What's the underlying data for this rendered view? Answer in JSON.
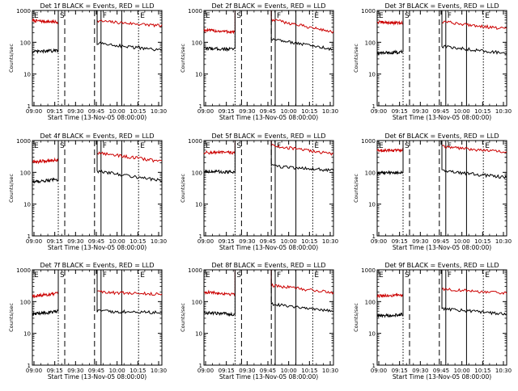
{
  "chart_data": [
    {
      "type": "line",
      "title": "Det 1f BLACK = Events, RED = LLD",
      "xlabel": "Start Time (13-Nov-05 08:00:00)",
      "ylabel": "Counts/sec",
      "x_ticks": [
        "09:00",
        "09:15",
        "09:30",
        "09:45",
        "10:00",
        "10:15",
        "10:30"
      ],
      "y_ticks": [
        "1",
        "10",
        "100",
        "1000"
      ],
      "ylim": [
        1,
        1000
      ],
      "y_scale": "log",
      "markers": [
        {
          "label": "E",
          "style": "solid",
          "t": 0
        },
        {
          "label": "S",
          "style": "dotted",
          "t": 0.2
        },
        {
          "label": "",
          "style": "dashed",
          "t": 0.25
        },
        {
          "label": "",
          "style": "dashed",
          "t": 0.48
        },
        {
          "label": "F",
          "style": "solid",
          "t": 0.53
        },
        {
          "label": "",
          "style": "solid",
          "t": 0.69
        },
        {
          "label": "E",
          "style": "dotted",
          "t": 0.82
        }
      ],
      "series": [
        {
          "color": "#cc0000",
          "segments": [
            {
              "x0": 0,
              "x1": 0.2,
              "v0": 480,
              "v1": 430,
              "spike": 1000
            },
            {
              "x0": 0.5,
              "x1": 1.0,
              "v0": 470,
              "v1": 330,
              "spike": 1000
            }
          ]
        },
        {
          "color": "#000000",
          "segments": [
            {
              "x0": 0,
              "x1": 0.2,
              "v0": 50,
              "v1": 55,
              "spike": 120
            },
            {
              "x0": 0.5,
              "x1": 1.0,
              "v0": 95,
              "v1": 55,
              "spike": 120
            }
          ]
        }
      ]
    },
    {
      "type": "line",
      "title": "Det 2f BLACK = Events, RED = LLD",
      "xlabel": "Start Time (13-Nov-05 08:00:00)",
      "ylabel": "Counts/sec",
      "x_ticks": [
        "09:00",
        "09:15",
        "09:30",
        "09:45",
        "10:00",
        "10:15",
        "10:30"
      ],
      "y_ticks": [
        "1",
        "10",
        "100",
        "1000"
      ],
      "ylim": [
        1,
        1000
      ],
      "y_scale": "log",
      "markers": [
        {
          "label": "E",
          "style": "solid",
          "t": 0
        },
        {
          "label": "S",
          "style": "dotted",
          "t": 0.24
        },
        {
          "label": "",
          "style": "dashed",
          "t": 0.29
        },
        {
          "label": "",
          "style": "dashed",
          "t": 0.52
        },
        {
          "label": "F",
          "style": "solid",
          "t": 0.55
        },
        {
          "label": "",
          "style": "solid",
          "t": 0.71
        },
        {
          "label": "E",
          "style": "dotted",
          "t": 0.84
        }
      ],
      "series": [
        {
          "color": "#cc0000",
          "segments": [
            {
              "x0": 0,
              "x1": 0.24,
              "v0": 240,
              "v1": 210,
              "spike": 1000
            },
            {
              "x0": 0.52,
              "x1": 1.0,
              "v0": 520,
              "v1": 210,
              "spike": 1000
            }
          ]
        },
        {
          "color": "#000000",
          "segments": [
            {
              "x0": 0,
              "x1": 0.24,
              "v0": 65,
              "v1": 60,
              "spike": 140
            },
            {
              "x0": 0.52,
              "x1": 1.0,
              "v0": 130,
              "v1": 60,
              "spike": 140
            }
          ]
        }
      ]
    },
    {
      "type": "line",
      "title": "Det 3f BLACK = Events, RED = LLD",
      "xlabel": "Start Time (13-Nov-05 08:00:00)",
      "ylabel": "Counts/sec",
      "x_ticks": [
        "09:00",
        "09:15",
        "09:30",
        "09:45",
        "10:00",
        "10:15",
        "10:30"
      ],
      "y_ticks": [
        "1",
        "10",
        "100",
        "1000"
      ],
      "ylim": [
        1,
        1000
      ],
      "y_scale": "log",
      "markers": [
        {
          "label": "E",
          "style": "solid",
          "t": 0
        },
        {
          "label": "S",
          "style": "dotted",
          "t": 0.2
        },
        {
          "label": "",
          "style": "dashed",
          "t": 0.25
        },
        {
          "label": "",
          "style": "dashed",
          "t": 0.48
        },
        {
          "label": "F",
          "style": "solid",
          "t": 0.53
        },
        {
          "label": "",
          "style": "solid",
          "t": 0.69
        },
        {
          "label": "E",
          "style": "dotted",
          "t": 0.82
        }
      ],
      "series": [
        {
          "color": "#cc0000",
          "segments": [
            {
              "x0": 0,
              "x1": 0.2,
              "v0": 430,
              "v1": 400,
              "spike": 1000
            },
            {
              "x0": 0.5,
              "x1": 1.0,
              "v0": 450,
              "v1": 260,
              "spike": 1000
            }
          ]
        },
        {
          "color": "#000000",
          "segments": [
            {
              "x0": 0,
              "x1": 0.2,
              "v0": 45,
              "v1": 50,
              "spike": 110
            },
            {
              "x0": 0.5,
              "x1": 1.0,
              "v0": 75,
              "v1": 45,
              "spike": 110
            }
          ]
        }
      ]
    },
    {
      "type": "line",
      "title": "Det 4f BLACK = Events, RED = LLD",
      "xlabel": "Start Time (13-Nov-05 08:00:00)",
      "ylabel": "Counts/sec",
      "x_ticks": [
        "09:00",
        "09:15",
        "09:30",
        "09:45",
        "10:00",
        "10:15",
        "10:30"
      ],
      "y_ticks": [
        "1",
        "10",
        "100",
        "1000"
      ],
      "ylim": [
        1,
        1000
      ],
      "y_scale": "log",
      "markers": [
        {
          "label": "E",
          "style": "solid",
          "t": 0
        },
        {
          "label": "S",
          "style": "dotted",
          "t": 0.2
        },
        {
          "label": "",
          "style": "dashed",
          "t": 0.25
        },
        {
          "label": "",
          "style": "dashed",
          "t": 0.48
        },
        {
          "label": "F",
          "style": "solid",
          "t": 0.53
        },
        {
          "label": "",
          "style": "solid",
          "t": 0.69
        },
        {
          "label": "E",
          "style": "dotted",
          "t": 0.82
        }
      ],
      "series": [
        {
          "color": "#cc0000",
          "segments": [
            {
              "x0": 0,
              "x1": 0.2,
              "v0": 210,
              "v1": 250,
              "spike": 1000
            },
            {
              "x0": 0.5,
              "x1": 1.0,
              "v0": 420,
              "v1": 220,
              "spike": 1000
            }
          ]
        },
        {
          "color": "#000000",
          "segments": [
            {
              "x0": 0,
              "x1": 0.2,
              "v0": 50,
              "v1": 60,
              "spike": 120
            },
            {
              "x0": 0.5,
              "x1": 1.0,
              "v0": 110,
              "v1": 55,
              "spike": 120
            }
          ]
        }
      ]
    },
    {
      "type": "line",
      "title": "Det 5f BLACK = Events, RED = LLD",
      "xlabel": "Start Time (13-Nov-05 08:00:00)",
      "ylabel": "Counts/sec",
      "x_ticks": [
        "09:00",
        "09:15",
        "09:30",
        "09:45",
        "10:00",
        "10:15",
        "10:30"
      ],
      "y_ticks": [
        "1",
        "10",
        "100",
        "1000"
      ],
      "ylim": [
        1,
        1000
      ],
      "y_scale": "log",
      "markers": [
        {
          "label": "E",
          "style": "solid",
          "t": 0
        },
        {
          "label": "S",
          "style": "dotted",
          "t": 0.24
        },
        {
          "label": "",
          "style": "dashed",
          "t": 0.29
        },
        {
          "label": "",
          "style": "dashed",
          "t": 0.52
        },
        {
          "label": "F",
          "style": "solid",
          "t": 0.55
        },
        {
          "label": "",
          "style": "solid",
          "t": 0.71
        },
        {
          "label": "E",
          "style": "dotted",
          "t": 0.84
        }
      ],
      "series": [
        {
          "color": "#cc0000",
          "segments": [
            {
              "x0": 0,
              "x1": 0.24,
              "v0": 420,
              "v1": 420,
              "spike": 1000
            },
            {
              "x0": 0.52,
              "x1": 1.0,
              "v0": 700,
              "v1": 380,
              "spike": 1000
            }
          ]
        },
        {
          "color": "#000000",
          "segments": [
            {
              "x0": 0,
              "x1": 0.24,
              "v0": 110,
              "v1": 100,
              "spike": 150
            },
            {
              "x0": 0.52,
              "x1": 1.0,
              "v0": 160,
              "v1": 115,
              "spike": 150
            }
          ]
        }
      ]
    },
    {
      "type": "line",
      "title": "Det 6f BLACK = Events, RED = LLD",
      "xlabel": "Start Time (13-Nov-05 08:00:00)",
      "ylabel": "Counts/sec",
      "x_ticks": [
        "09:00",
        "09:15",
        "09:30",
        "09:45",
        "10:00",
        "10:15",
        "10:30"
      ],
      "y_ticks": [
        "1",
        "10",
        "100",
        "1000"
      ],
      "ylim": [
        1,
        1000
      ],
      "y_scale": "log",
      "markers": [
        {
          "label": "E",
          "style": "solid",
          "t": 0
        },
        {
          "label": "S",
          "style": "dotted",
          "t": 0.2
        },
        {
          "label": "",
          "style": "dashed",
          "t": 0.25
        },
        {
          "label": "",
          "style": "dashed",
          "t": 0.48
        },
        {
          "label": "F",
          "style": "solid",
          "t": 0.53
        },
        {
          "label": "",
          "style": "solid",
          "t": 0.69
        },
        {
          "label": "E",
          "style": "dotted",
          "t": 0.82
        }
      ],
      "series": [
        {
          "color": "#cc0000",
          "segments": [
            {
              "x0": 0,
              "x1": 0.2,
              "v0": 480,
              "v1": 500,
              "spike": 1000
            },
            {
              "x0": 0.5,
              "x1": 1.0,
              "v0": 650,
              "v1": 430,
              "spike": 1000
            }
          ]
        },
        {
          "color": "#000000",
          "segments": [
            {
              "x0": 0,
              "x1": 0.2,
              "v0": 95,
              "v1": 100,
              "spike": 140
            },
            {
              "x0": 0.5,
              "x1": 1.0,
              "v0": 110,
              "v1": 70,
              "spike": 140
            }
          ]
        }
      ]
    },
    {
      "type": "line",
      "title": "Det 7f BLACK = Events, RED = LLD",
      "xlabel": "Start Time (13-Nov-05 08:00:00)",
      "ylabel": "Counts/sec",
      "x_ticks": [
        "09:00",
        "09:15",
        "09:30",
        "09:45",
        "10:00",
        "10:15",
        "10:30"
      ],
      "y_ticks": [
        "1",
        "10",
        "100",
        "1000"
      ],
      "ylim": [
        1,
        1000
      ],
      "y_scale": "log",
      "markers": [
        {
          "label": "E",
          "style": "solid",
          "t": 0
        },
        {
          "label": "S",
          "style": "dotted",
          "t": 0.2
        },
        {
          "label": "",
          "style": "dashed",
          "t": 0.25
        },
        {
          "label": "",
          "style": "dashed",
          "t": 0.48
        },
        {
          "label": "F",
          "style": "solid",
          "t": 0.53
        },
        {
          "label": "",
          "style": "solid",
          "t": 0.69
        },
        {
          "label": "E",
          "style": "dotted",
          "t": 0.82
        }
      ],
      "series": [
        {
          "color": "#cc0000",
          "segments": [
            {
              "x0": 0,
              "x1": 0.2,
              "v0": 150,
              "v1": 180,
              "spike": 1000
            },
            {
              "x0": 0.5,
              "x1": 1.0,
              "v0": 200,
              "v1": 170,
              "spike": 1000
            }
          ]
        },
        {
          "color": "#000000",
          "segments": [
            {
              "x0": 0,
              "x1": 0.2,
              "v0": 40,
              "v1": 50,
              "spike": 90
            },
            {
              "x0": 0.5,
              "x1": 1.0,
              "v0": 50,
              "v1": 45,
              "spike": 90
            }
          ]
        }
      ]
    },
    {
      "type": "line",
      "title": "Det 8f BLACK = Events, RED = LLD",
      "xlabel": "Start Time (13-Nov-05 08:00:00)",
      "ylabel": "Counts/sec",
      "x_ticks": [
        "09:00",
        "09:15",
        "09:30",
        "09:45",
        "10:00",
        "10:15",
        "10:30"
      ],
      "y_ticks": [
        "1",
        "10",
        "100",
        "1000"
      ],
      "ylim": [
        1,
        1000
      ],
      "y_scale": "log",
      "markers": [
        {
          "label": "E",
          "style": "solid",
          "t": 0
        },
        {
          "label": "S",
          "style": "dotted",
          "t": 0.24
        },
        {
          "label": "",
          "style": "dashed",
          "t": 0.29
        },
        {
          "label": "",
          "style": "dashed",
          "t": 0.52
        },
        {
          "label": "F",
          "style": "solid",
          "t": 0.55
        },
        {
          "label": "",
          "style": "solid",
          "t": 0.71
        },
        {
          "label": "E",
          "style": "dotted",
          "t": 0.84
        }
      ],
      "series": [
        {
          "color": "#cc0000",
          "segments": [
            {
              "x0": 0,
              "x1": 0.24,
              "v0": 200,
              "v1": 170,
              "spike": 1000
            },
            {
              "x0": 0.52,
              "x1": 1.0,
              "v0": 330,
              "v1": 190,
              "spike": 1000
            }
          ]
        },
        {
          "color": "#000000",
          "segments": [
            {
              "x0": 0,
              "x1": 0.24,
              "v0": 45,
              "v1": 40,
              "spike": 110
            },
            {
              "x0": 0.52,
              "x1": 1.0,
              "v0": 85,
              "v1": 50,
              "spike": 110
            }
          ]
        }
      ]
    },
    {
      "type": "line",
      "title": "Det 9f BLACK = Events, RED = LLD",
      "xlabel": "Start Time (13-Nov-05 08:00:00)",
      "ylabel": "Counts/sec",
      "x_ticks": [
        "09:00",
        "09:15",
        "09:30",
        "09:45",
        "10:00",
        "10:15",
        "10:30"
      ],
      "y_ticks": [
        "1",
        "10",
        "100",
        "1000"
      ],
      "ylim": [
        1,
        1000
      ],
      "y_scale": "log",
      "markers": [
        {
          "label": "E",
          "style": "solid",
          "t": 0
        },
        {
          "label": "S",
          "style": "dotted",
          "t": 0.2
        },
        {
          "label": "",
          "style": "dashed",
          "t": 0.25
        },
        {
          "label": "",
          "style": "dashed",
          "t": 0.48
        },
        {
          "label": "F",
          "style": "solid",
          "t": 0.53
        },
        {
          "label": "",
          "style": "solid",
          "t": 0.69
        },
        {
          "label": "E",
          "style": "dotted",
          "t": 0.82
        }
      ],
      "series": [
        {
          "color": "#cc0000",
          "segments": [
            {
              "x0": 0,
              "x1": 0.2,
              "v0": 150,
              "v1": 160,
              "spike": 1000
            },
            {
              "x0": 0.5,
              "x1": 1.0,
              "v0": 250,
              "v1": 180,
              "spike": 1000
            }
          ]
        },
        {
          "color": "#000000",
          "segments": [
            {
              "x0": 0,
              "x1": 0.2,
              "v0": 35,
              "v1": 40,
              "spike": 90
            },
            {
              "x0": 0.5,
              "x1": 1.0,
              "v0": 60,
              "v1": 40,
              "spike": 90
            }
          ]
        }
      ]
    }
  ]
}
